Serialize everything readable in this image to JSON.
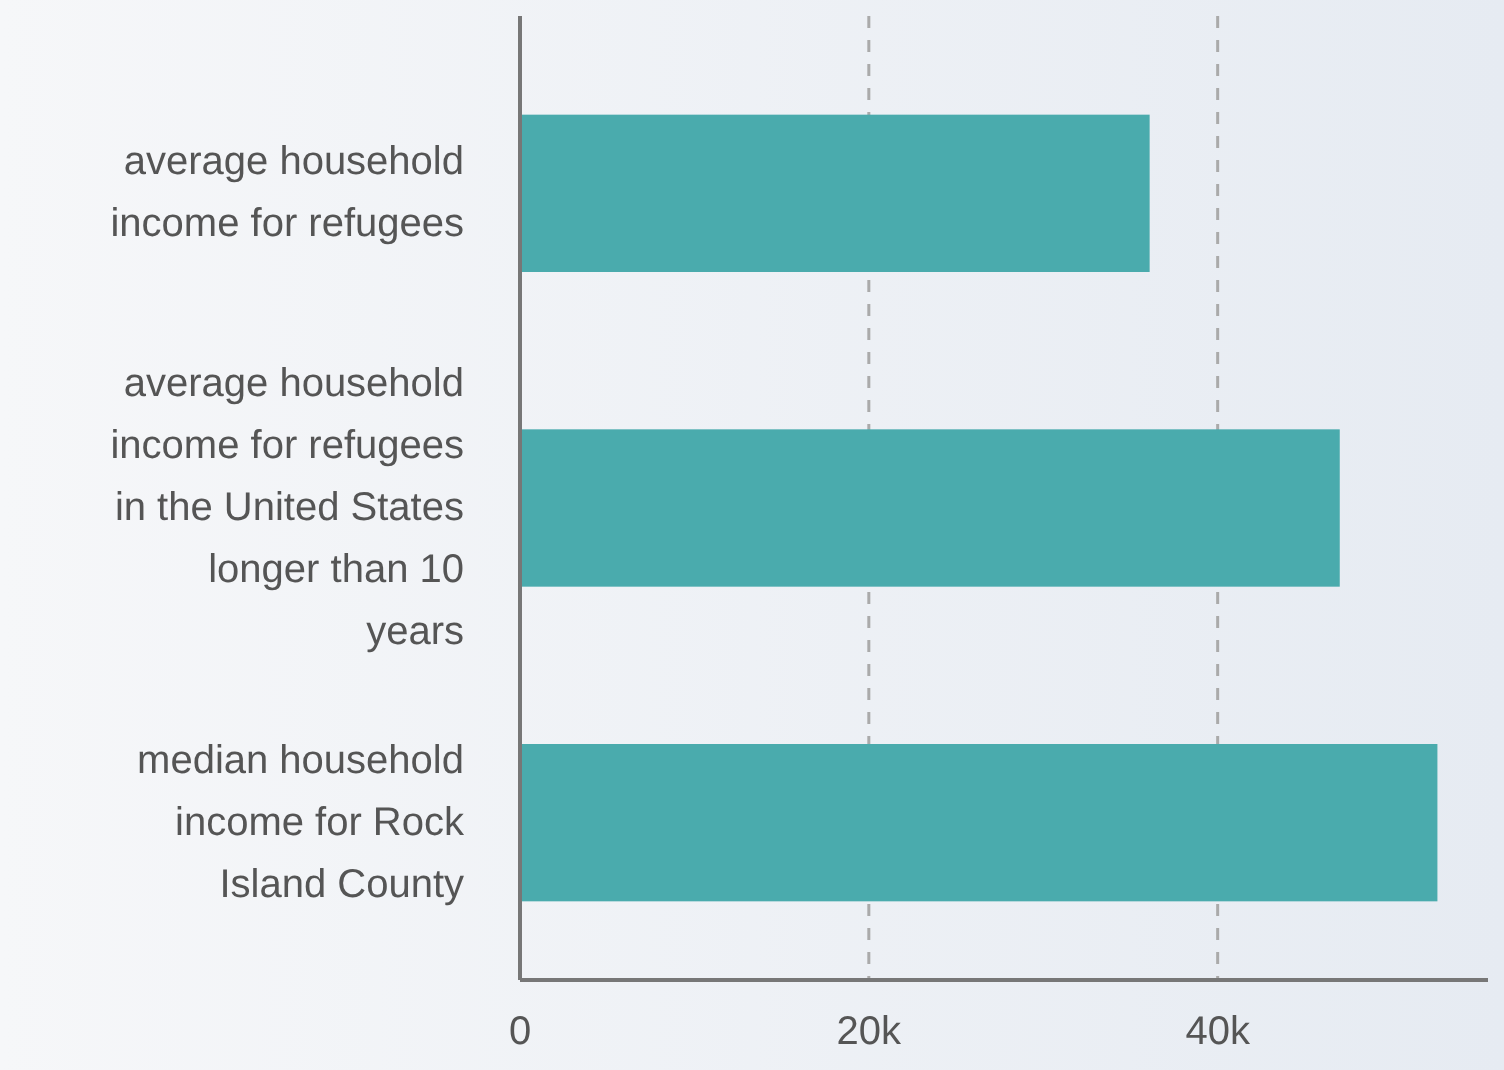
{
  "chart_data": {
    "type": "bar",
    "orientation": "horizontal",
    "categories": [
      "average household income for refugees",
      "average household income for refugees in the United States longer than 10 years",
      "median household income for Rock Island County"
    ],
    "values": [
      36.1,
      47.0,
      52.6
    ],
    "color": "#4aabad",
    "xlim": [
      0,
      55.5
    ],
    "xticks": [
      {
        "value": 0,
        "label": "0"
      },
      {
        "value": 20,
        "label": "20k"
      },
      {
        "value": 40,
        "label": "40k"
      }
    ],
    "grid": "x"
  }
}
